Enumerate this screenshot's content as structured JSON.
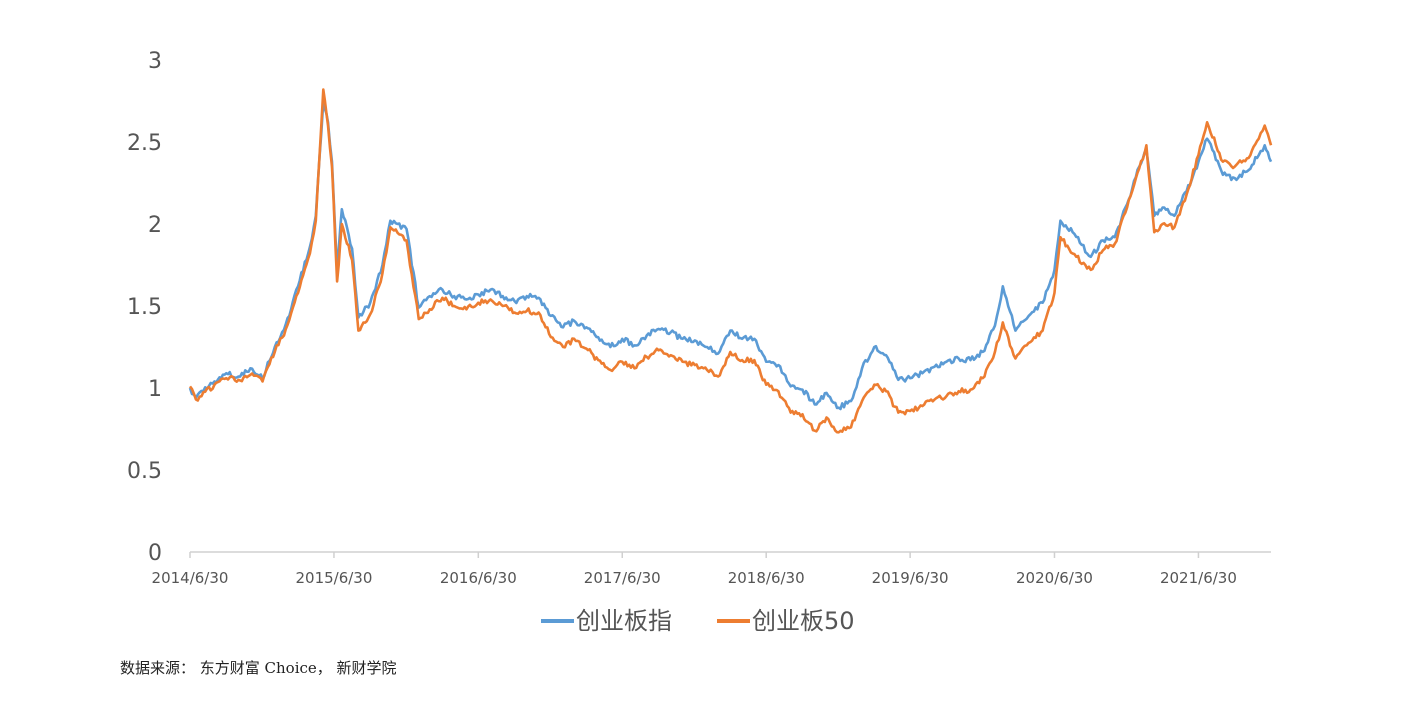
{
  "chart_data": {
    "type": "line",
    "ylim": [
      0,
      3
    ],
    "yticks": [
      "0",
      "0.5",
      "1",
      "1.5",
      "2",
      "2.5",
      "3"
    ],
    "xticks": [
      "2014/6/30",
      "2015/6/30",
      "2016/6/30",
      "2017/6/30",
      "2018/6/30",
      "2019/6/30",
      "2020/6/30",
      "2021/6/30"
    ],
    "grid": false,
    "legend_position": "bottom",
    "x_start": "2014/6/30",
    "x_end": "2021/12/31",
    "series": [
      {
        "name": "创业板指",
        "color": "#5B9BD5",
        "points": [
          [
            "2014/6/30",
            1.0
          ],
          [
            "2014/7/15",
            0.94
          ],
          [
            "2014/8/31",
            1.04
          ],
          [
            "2014/9/30",
            1.09
          ],
          [
            "2014/10/31",
            1.07
          ],
          [
            "2014/11/30",
            1.12
          ],
          [
            "2014/12/31",
            1.06
          ],
          [
            "2015/1/31",
            1.25
          ],
          [
            "2015/2/28",
            1.39
          ],
          [
            "2015/3/31",
            1.62
          ],
          [
            "2015/4/30",
            1.86
          ],
          [
            "2015/5/15",
            2.05
          ],
          [
            "2015/6/3",
            2.75
          ],
          [
            "2015/6/15",
            2.62
          ],
          [
            "2015/6/25",
            2.38
          ],
          [
            "2015/7/8",
            1.72
          ],
          [
            "2015/7/20",
            2.09
          ],
          [
            "2015/8/15",
            1.85
          ],
          [
            "2015/8/31",
            1.43
          ],
          [
            "2015/9/30",
            1.52
          ],
          [
            "2015/10/31",
            1.75
          ],
          [
            "2015/11/20",
            2.02
          ],
          [
            "2015/12/31",
            1.97
          ],
          [
            "2016/1/31",
            1.49
          ],
          [
            "2016/2/28",
            1.56
          ],
          [
            "2016/3/31",
            1.6
          ],
          [
            "2016/4/30",
            1.56
          ],
          [
            "2016/5/31",
            1.54
          ],
          [
            "2016/6/30",
            1.57
          ],
          [
            "2016/7/31",
            1.6
          ],
          [
            "2016/8/31",
            1.56
          ],
          [
            "2016/9/30",
            1.53
          ],
          [
            "2016/10/31",
            1.56
          ],
          [
            "2016/11/30",
            1.55
          ],
          [
            "2016/12/31",
            1.44
          ],
          [
            "2017/1/31",
            1.37
          ],
          [
            "2017/2/28",
            1.41
          ],
          [
            "2017/3/31",
            1.37
          ],
          [
            "2017/4/30",
            1.31
          ],
          [
            "2017/5/31",
            1.25
          ],
          [
            "2017/6/30",
            1.3
          ],
          [
            "2017/7/31",
            1.26
          ],
          [
            "2017/8/31",
            1.32
          ],
          [
            "2017/9/30",
            1.36
          ],
          [
            "2017/10/31",
            1.34
          ],
          [
            "2017/11/30",
            1.3
          ],
          [
            "2017/12/31",
            1.29
          ],
          [
            "2018/1/31",
            1.25
          ],
          [
            "2018/2/28",
            1.21
          ],
          [
            "2018/3/31",
            1.35
          ],
          [
            "2018/4/30",
            1.3
          ],
          [
            "2018/5/31",
            1.3
          ],
          [
            "2018/6/30",
            1.16
          ],
          [
            "2018/7/31",
            1.14
          ],
          [
            "2018/8/31",
            1.01
          ],
          [
            "2018/9/30",
            0.99
          ],
          [
            "2018/10/31",
            0.9
          ],
          [
            "2018/11/30",
            0.97
          ],
          [
            "2018/12/31",
            0.88
          ],
          [
            "2019/1/31",
            0.92
          ],
          [
            "2019/2/28",
            1.12
          ],
          [
            "2019/3/31",
            1.25
          ],
          [
            "2019/4/30",
            1.2
          ],
          [
            "2019/5/31",
            1.05
          ],
          [
            "2019/6/30",
            1.06
          ],
          [
            "2019/7/31",
            1.09
          ],
          [
            "2019/8/31",
            1.13
          ],
          [
            "2019/9/30",
            1.16
          ],
          [
            "2019/10/31",
            1.18
          ],
          [
            "2019/11/30",
            1.17
          ],
          [
            "2019/12/31",
            1.22
          ],
          [
            "2020/1/31",
            1.38
          ],
          [
            "2020/2/20",
            1.62
          ],
          [
            "2020/3/23",
            1.35
          ],
          [
            "2020/4/30",
            1.45
          ],
          [
            "2020/5/31",
            1.52
          ],
          [
            "2020/6/30",
            1.72
          ],
          [
            "2020/7/15",
            2.02
          ],
          [
            "2020/8/15",
            1.95
          ],
          [
            "2020/9/30",
            1.8
          ],
          [
            "2020/10/31",
            1.9
          ],
          [
            "2020/11/30",
            1.92
          ],
          [
            "2020/12/31",
            2.12
          ],
          [
            "2021/1/31",
            2.35
          ],
          [
            "2021/2/18",
            2.45
          ],
          [
            "2021/3/10",
            2.05
          ],
          [
            "2021/3/31",
            2.1
          ],
          [
            "2021/4/30",
            2.05
          ],
          [
            "2021/5/31",
            2.2
          ],
          [
            "2021/6/30",
            2.38
          ],
          [
            "2021/7/22",
            2.52
          ],
          [
            "2021/8/31",
            2.3
          ],
          [
            "2021/9/30",
            2.28
          ],
          [
            "2021/10/31",
            2.32
          ],
          [
            "2021/11/30",
            2.42
          ],
          [
            "2021/12/15",
            2.48
          ],
          [
            "2021/12/31",
            2.38
          ]
        ]
      },
      {
        "name": "创业板50",
        "color": "#ED7D31",
        "points": [
          [
            "2014/6/30",
            1.01
          ],
          [
            "2014/7/15",
            0.93
          ],
          [
            "2014/8/31",
            1.02
          ],
          [
            "2014/9/30",
            1.06
          ],
          [
            "2014/10/31",
            1.05
          ],
          [
            "2014/11/30",
            1.08
          ],
          [
            "2014/12/31",
            1.04
          ],
          [
            "2015/1/31",
            1.22
          ],
          [
            "2015/2/28",
            1.36
          ],
          [
            "2015/3/31",
            1.58
          ],
          [
            "2015/4/30",
            1.82
          ],
          [
            "2015/5/15",
            2.02
          ],
          [
            "2015/6/3",
            2.82
          ],
          [
            "2015/6/15",
            2.6
          ],
          [
            "2015/6/25",
            2.35
          ],
          [
            "2015/7/8",
            1.65
          ],
          [
            "2015/7/20",
            2.0
          ],
          [
            "2015/8/15",
            1.78
          ],
          [
            "2015/8/31",
            1.35
          ],
          [
            "2015/9/30",
            1.45
          ],
          [
            "2015/10/31",
            1.7
          ],
          [
            "2015/11/20",
            1.98
          ],
          [
            "2015/12/31",
            1.9
          ],
          [
            "2016/1/31",
            1.42
          ],
          [
            "2016/2/28",
            1.48
          ],
          [
            "2016/3/31",
            1.55
          ],
          [
            "2016/4/30",
            1.5
          ],
          [
            "2016/5/31",
            1.48
          ],
          [
            "2016/6/30",
            1.52
          ],
          [
            "2016/7/31",
            1.54
          ],
          [
            "2016/8/31",
            1.5
          ],
          [
            "2016/9/30",
            1.46
          ],
          [
            "2016/10/31",
            1.47
          ],
          [
            "2016/11/30",
            1.46
          ],
          [
            "2016/12/31",
            1.31
          ],
          [
            "2017/1/31",
            1.25
          ],
          [
            "2017/2/28",
            1.3
          ],
          [
            "2017/3/31",
            1.24
          ],
          [
            "2017/4/30",
            1.17
          ],
          [
            "2017/5/31",
            1.11
          ],
          [
            "2017/6/30",
            1.16
          ],
          [
            "2017/7/31",
            1.12
          ],
          [
            "2017/8/31",
            1.19
          ],
          [
            "2017/9/30",
            1.23
          ],
          [
            "2017/10/31",
            1.2
          ],
          [
            "2017/11/30",
            1.16
          ],
          [
            "2017/12/31",
            1.14
          ],
          [
            "2018/1/31",
            1.11
          ],
          [
            "2018/2/28",
            1.07
          ],
          [
            "2018/3/31",
            1.22
          ],
          [
            "2018/4/30",
            1.17
          ],
          [
            "2018/5/31",
            1.17
          ],
          [
            "2018/6/30",
            1.02
          ],
          [
            "2018/7/31",
            0.98
          ],
          [
            "2018/8/31",
            0.85
          ],
          [
            "2018/9/30",
            0.84
          ],
          [
            "2018/10/31",
            0.74
          ],
          [
            "2018/11/30",
            0.82
          ],
          [
            "2018/12/31",
            0.73
          ],
          [
            "2019/1/31",
            0.76
          ],
          [
            "2019/2/28",
            0.92
          ],
          [
            "2019/3/31",
            1.02
          ],
          [
            "2019/4/30",
            0.98
          ],
          [
            "2019/5/31",
            0.85
          ],
          [
            "2019/6/30",
            0.86
          ],
          [
            "2019/7/31",
            0.89
          ],
          [
            "2019/8/31",
            0.93
          ],
          [
            "2019/9/30",
            0.95
          ],
          [
            "2019/10/31",
            0.98
          ],
          [
            "2019/11/30",
            0.99
          ],
          [
            "2019/12/31",
            1.06
          ],
          [
            "2020/1/31",
            1.22
          ],
          [
            "2020/2/20",
            1.4
          ],
          [
            "2020/3/23",
            1.18
          ],
          [
            "2020/4/30",
            1.28
          ],
          [
            "2020/5/31",
            1.35
          ],
          [
            "2020/6/30",
            1.58
          ],
          [
            "2020/7/15",
            1.92
          ],
          [
            "2020/8/15",
            1.82
          ],
          [
            "2020/9/30",
            1.72
          ],
          [
            "2020/10/31",
            1.84
          ],
          [
            "2020/11/30",
            1.88
          ],
          [
            "2020/12/31",
            2.1
          ],
          [
            "2021/1/31",
            2.34
          ],
          [
            "2021/2/18",
            2.48
          ],
          [
            "2021/3/10",
            1.95
          ],
          [
            "2021/3/31",
            2.0
          ],
          [
            "2021/4/30",
            1.98
          ],
          [
            "2021/5/31",
            2.18
          ],
          [
            "2021/6/30",
            2.42
          ],
          [
            "2021/7/22",
            2.62
          ],
          [
            "2021/8/31",
            2.38
          ],
          [
            "2021/9/30",
            2.35
          ],
          [
            "2021/10/31",
            2.4
          ],
          [
            "2021/11/30",
            2.52
          ],
          [
            "2021/12/15",
            2.6
          ],
          [
            "2021/12/31",
            2.48
          ]
        ]
      }
    ]
  },
  "source": "数据来源： 东方财富 Choice， 新财学院"
}
